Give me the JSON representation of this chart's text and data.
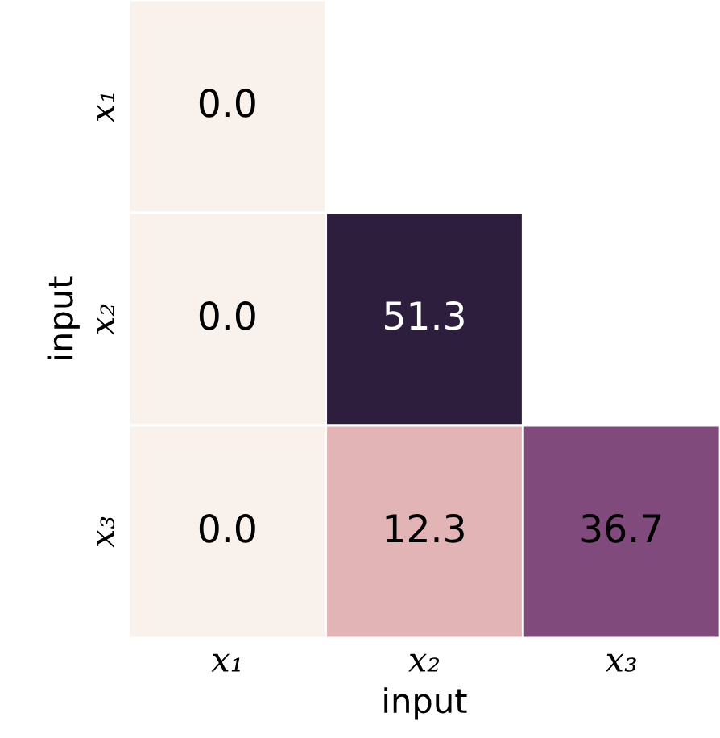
{
  "chart_data": {
    "type": "heatmap",
    "xlabel": "input",
    "ylabel": "input",
    "categories": [
      "x₁",
      "x₂",
      "x₃"
    ],
    "y_categories": [
      "x₁",
      "x₂",
      "x₃"
    ],
    "cells": [
      [
        0.0,
        null,
        null
      ],
      [
        0.0,
        51.3,
        null
      ],
      [
        0.0,
        12.3,
        36.7
      ]
    ],
    "cell_labels": [
      [
        "0.0",
        null,
        null
      ],
      [
        "0.0",
        "51.3",
        null
      ],
      [
        "0.0",
        "12.3",
        "36.7"
      ]
    ]
  }
}
